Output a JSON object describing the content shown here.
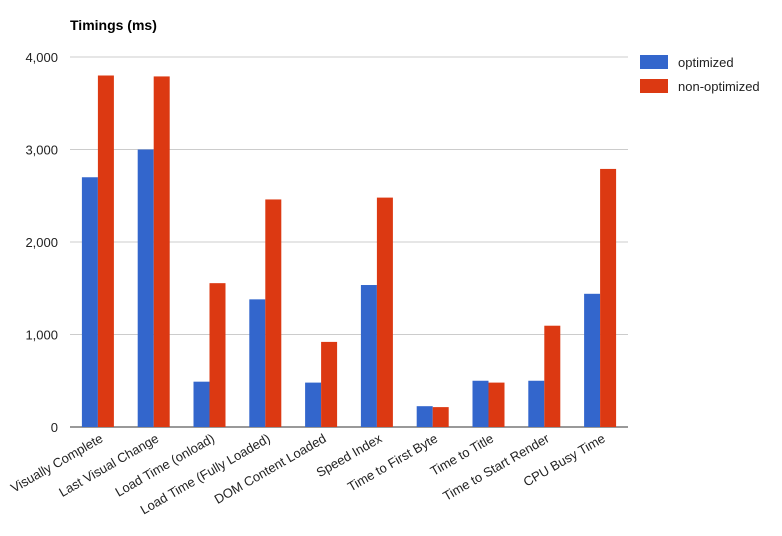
{
  "chart_data": {
    "type": "bar",
    "title": "Timings (ms)",
    "xlabel": "",
    "ylabel": "",
    "ylim": [
      0,
      4000
    ],
    "yticks": [
      0,
      1000,
      2000,
      3000,
      4000
    ],
    "ytick_labels": [
      "0",
      "1,000",
      "2,000",
      "3,000",
      "4,000"
    ],
    "grid": true,
    "legend_position": "top-right",
    "categories": [
      "Visually Complete",
      "Last Visual Change",
      "Load Time (onload)",
      "Load Time (Fully Loaded)",
      "DOM Content Loaded",
      "Speed Index",
      "Time to First Byte",
      "Time to Title",
      "Time to Start Render",
      "CPU Busy Time"
    ],
    "series": [
      {
        "name": "optimized",
        "color": "#3366cc",
        "values": [
          2700,
          3000,
          490,
          1380,
          480,
          1535,
          225,
          500,
          500,
          1440
        ]
      },
      {
        "name": "non-optimized",
        "color": "#dc3912",
        "values": [
          3800,
          3790,
          1555,
          2460,
          920,
          2480,
          215,
          480,
          1095,
          2790
        ]
      }
    ]
  }
}
